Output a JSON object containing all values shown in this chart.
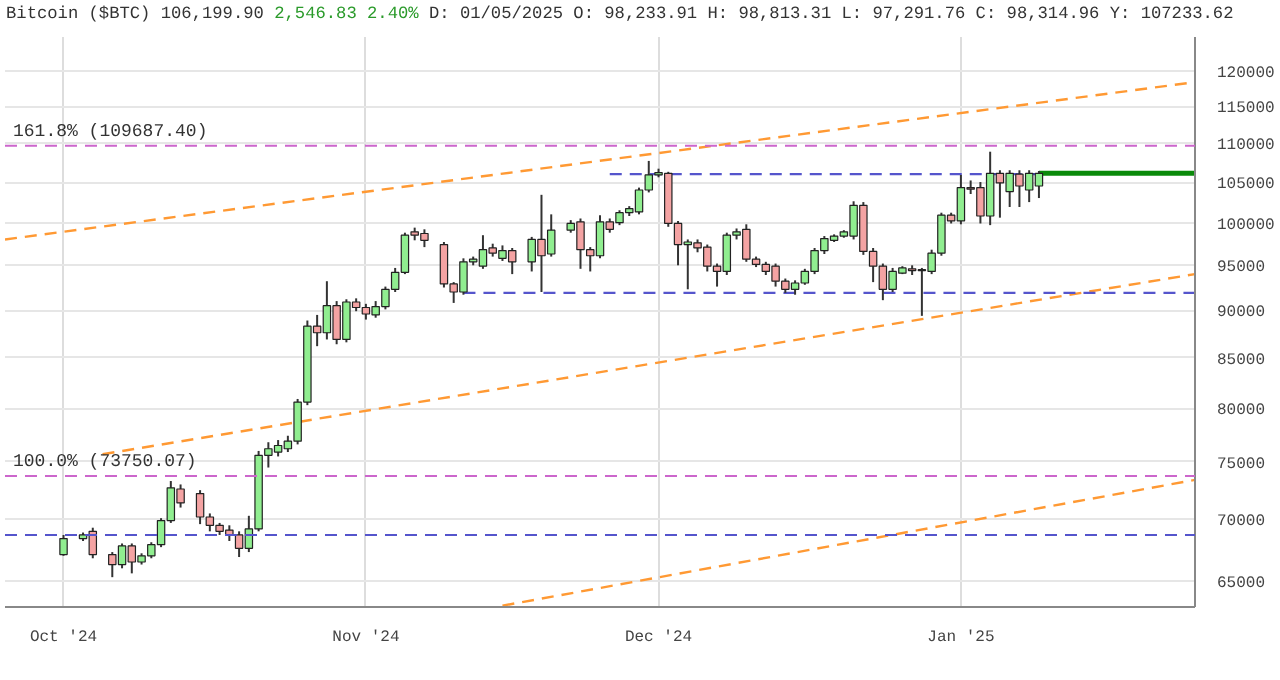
{
  "chart_data": {
    "type": "candlestick",
    "title": "Bitcoin ($BTC) 106,199.90",
    "subtitle": "2,546.83 2.40%",
    "annotations": [
      "D: 01/05/2025 O: 98,233.91 H: 98,813.31 L: 97,291.76 C: 98,314.96 Y: 107233.62"
    ],
    "x": [
      "2024-10-01",
      "2024-10-03",
      "2024-10-04",
      "2024-10-06",
      "2024-10-07",
      "2024-10-08",
      "2024-10-09",
      "2024-10-10",
      "2024-10-11",
      "2024-10-12",
      "2024-10-13",
      "2024-10-15",
      "2024-10-16",
      "2024-10-17",
      "2024-10-18",
      "2024-10-19",
      "2024-10-20",
      "2024-10-21",
      "2024-10-22",
      "2024-10-23",
      "2024-10-24",
      "2024-10-25",
      "2024-10-26",
      "2024-10-27",
      "2024-10-28",
      "2024-10-29",
      "2024-10-30",
      "2024-10-31",
      "2024-11-01",
      "2024-11-02",
      "2024-11-03",
      "2024-11-04",
      "2024-11-05",
      "2024-11-06",
      "2024-11-07",
      "2024-11-09",
      "2024-11-10",
      "2024-11-11",
      "2024-11-12",
      "2024-11-13",
      "2024-11-14",
      "2024-11-15",
      "2024-11-16",
      "2024-11-18",
      "2024-11-19",
      "2024-11-20",
      "2024-11-22",
      "2024-11-23",
      "2024-11-24",
      "2024-11-25",
      "2024-11-26",
      "2024-11-27",
      "2024-11-28",
      "2024-11-29",
      "2024-11-30",
      "2024-12-01",
      "2024-12-02",
      "2024-12-03",
      "2024-12-04",
      "2024-12-05",
      "2024-12-06",
      "2024-12-07",
      "2024-12-08",
      "2024-12-09",
      "2024-12-10",
      "2024-12-11",
      "2024-12-12",
      "2024-12-13",
      "2024-12-14",
      "2024-12-15",
      "2024-12-16",
      "2024-12-17",
      "2024-12-18",
      "2024-12-19",
      "2024-12-20",
      "2024-12-21",
      "2024-12-22",
      "2024-12-23",
      "2024-12-24",
      "2024-12-25",
      "2024-12-26",
      "2024-12-27",
      "2024-12-28",
      "2024-12-29",
      "2024-12-30",
      "2024-12-31",
      "2025-01-01",
      "2025-01-02",
      "2025-01-03",
      "2025-01-04",
      "2025-01-05",
      "2025-01-06",
      "2025-01-07",
      "2025-01-08",
      "2025-01-09"
    ],
    "ohlc": [
      [
        67100,
        68700,
        67000,
        68400
      ],
      [
        68400,
        68900,
        68200,
        68700
      ],
      [
        69000,
        69300,
        66800,
        67100
      ],
      [
        67100,
        67300,
        65300,
        66300
      ],
      [
        66300,
        68000,
        66000,
        67800
      ],
      [
        67800,
        68000,
        65600,
        66500
      ],
      [
        66500,
        67200,
        66300,
        67000
      ],
      [
        67000,
        68100,
        66800,
        67900
      ],
      [
        67900,
        70100,
        67700,
        69900
      ],
      [
        69900,
        73300,
        69700,
        72700
      ],
      [
        72600,
        73000,
        71000,
        71400
      ],
      [
        72200,
        72500,
        69600,
        70200
      ],
      [
        70200,
        70500,
        69000,
        69500
      ],
      [
        69500,
        69700,
        68700,
        69000
      ],
      [
        69100,
        69500,
        68200,
        68700
      ],
      [
        68700,
        69000,
        66900,
        67600
      ],
      [
        67600,
        70300,
        67300,
        69200
      ],
      [
        69200,
        76000,
        69000,
        75600
      ],
      [
        75600,
        76800,
        74500,
        76200
      ],
      [
        75900,
        77000,
        75500,
        76500
      ],
      [
        76200,
        77400,
        75900,
        76900
      ],
      [
        76900,
        80900,
        76600,
        80600
      ],
      [
        80600,
        88900,
        80300,
        88300
      ],
      [
        88300,
        89500,
        86200,
        87600
      ],
      [
        87600,
        93200,
        86900,
        90500
      ],
      [
        90500,
        91000,
        86400,
        86900
      ],
      [
        86900,
        91200,
        86600,
        90900
      ],
      [
        90900,
        91300,
        89900,
        90300
      ],
      [
        90300,
        90700,
        89000,
        89600
      ],
      [
        89500,
        91000,
        89200,
        90400
      ],
      [
        90400,
        92600,
        90100,
        92300
      ],
      [
        92300,
        94700,
        92000,
        94200
      ],
      [
        94200,
        98800,
        94000,
        98500
      ],
      [
        98900,
        99400,
        97900,
        98500
      ],
      [
        98700,
        99200,
        97100,
        97900
      ],
      [
        97400,
        97700,
        92500,
        92900
      ],
      [
        92900,
        93100,
        90800,
        92000
      ],
      [
        92000,
        95800,
        91700,
        95400
      ],
      [
        95400,
        96000,
        95000,
        95700
      ],
      [
        94900,
        98500,
        94600,
        96800
      ],
      [
        97000,
        97500,
        96000,
        96400
      ],
      [
        95800,
        97300,
        95500,
        96700
      ],
      [
        96700,
        97000,
        94000,
        95400
      ],
      [
        95400,
        98300,
        94300,
        98000
      ],
      [
        98000,
        103400,
        92000,
        96100
      ],
      [
        96300,
        101000,
        96000,
        99100
      ],
      [
        99100,
        100300,
        98800,
        99900
      ],
      [
        100100,
        100500,
        94600,
        96800
      ],
      [
        96800,
        97100,
        94300,
        96100
      ],
      [
        96100,
        100900,
        95800,
        100100
      ],
      [
        100100,
        100500,
        98800,
        99200
      ],
      [
        100000,
        101500,
        99700,
        101200
      ],
      [
        101200,
        102000,
        100800,
        101700
      ],
      [
        101300,
        104300,
        101000,
        104000
      ],
      [
        104000,
        107700,
        103700,
        105900
      ],
      [
        105900,
        106700,
        105600,
        106200
      ],
      [
        106100,
        106300,
        99500,
        99900
      ],
      [
        99900,
        100200,
        95000,
        97400
      ],
      [
        97400,
        98000,
        92300,
        97700
      ],
      [
        97600,
        98000,
        96500,
        97000
      ],
      [
        97100,
        97400,
        94300,
        94900
      ],
      [
        94900,
        95200,
        92600,
        94300
      ],
      [
        94300,
        98800,
        93900,
        98500
      ],
      [
        98500,
        99300,
        98000,
        98900
      ],
      [
        99200,
        99800,
        95400,
        95700
      ],
      [
        95700,
        96000,
        94800,
        95100
      ],
      [
        95100,
        95400,
        93900,
        94300
      ],
      [
        94900,
        95200,
        92600,
        93200
      ],
      [
        93200,
        93500,
        91900,
        92300
      ],
      [
        92300,
        93300,
        91700,
        93000
      ],
      [
        93000,
        94600,
        92800,
        94300
      ],
      [
        94300,
        97000,
        94000,
        96700
      ],
      [
        96700,
        98400,
        96300,
        98100
      ],
      [
        97900,
        98600,
        97700,
        98400
      ],
      [
        98400,
        99100,
        98200,
        98900
      ],
      [
        98400,
        102600,
        98000,
        102100
      ],
      [
        102100,
        102500,
        96200,
        96600
      ],
      [
        96600,
        97000,
        93100,
        94900
      ],
      [
        94900,
        95200,
        91100,
        92300
      ],
      [
        92300,
        94700,
        92000,
        94300
      ],
      [
        94100,
        94900,
        94000,
        94700
      ],
      [
        94600,
        95000,
        93900,
        94400
      ],
      [
        94400,
        94700,
        89400,
        94500
      ],
      [
        94300,
        96800,
        94000,
        96400
      ],
      [
        96400,
        101200,
        96100,
        100900
      ],
      [
        100900,
        101200,
        99900,
        100200
      ],
      [
        100200,
        105900,
        99800,
        104300
      ],
      [
        104300,
        105200,
        103500,
        104100
      ],
      [
        104300,
        105000,
        99900,
        100800
      ],
      [
        100800,
        108900,
        99700,
        106100
      ],
      [
        106100,
        106500,
        100600,
        104900
      ],
      [
        103800,
        106500,
        101900,
        106100
      ],
      [
        106000,
        106500,
        101900,
        104500
      ],
      [
        104000,
        106500,
        102500,
        106100
      ],
      [
        104500,
        106400,
        103000,
        106100
      ]
    ],
    "series": [
      {
        "type": "line",
        "x": [
          "2024-09-25",
          "2025-01-25"
        ],
        "values": [
          98000,
          118400
        ],
        "color": "#ff9933",
        "line_style": "dashed"
      },
      {
        "type": "line",
        "x": [
          "2024-10-05",
          "2025-01-25"
        ],
        "values": [
          75700,
          94000
        ],
        "color": "#ff9933",
        "line_style": "dashed"
      },
      {
        "type": "line",
        "x": [
          "2024-11-15",
          "2025-01-25"
        ],
        "values": [
          63100,
          73400
        ],
        "color": "#ff9933",
        "line_style": "dashed"
      },
      {
        "type": "line",
        "x": [
          "2024-11-26",
          "2025-01-09"
        ],
        "values": [
          106000,
          106000
        ],
        "color": "#5555cc",
        "line_style": "dashed"
      },
      {
        "type": "line",
        "x": [
          "2024-11-11",
          "2025-01-25"
        ],
        "values": [
          91900,
          91900
        ],
        "color": "#5555cc",
        "line_style": "dashed"
      },
      {
        "type": "line",
        "x": [
          "2025-01-09",
          "2025-01-25"
        ],
        "values": [
          106100,
          106100
        ],
        "color": "#0a8a0a",
        "line_style": "solid"
      }
    ],
    "ref_lines": [
      {
        "axis": "y",
        "value": 109687.4,
        "label": "161.8% (109687.40)",
        "color": "#cc66cc",
        "line_style": "dashed"
      },
      {
        "axis": "y",
        "value": 73750.07,
        "label": "100.0% (73750.07)",
        "color": "#cc66cc",
        "line_style": "dashed"
      },
      {
        "axis": "y",
        "value": 68700,
        "color": "#5555cc",
        "line_style": "dashed"
      }
    ],
    "log": true,
    "grid": true,
    "xlim": [
      "2024-09-25",
      "2025-01-25"
    ],
    "xticks": [
      {
        "value": "2024-10-01",
        "label": "Oct '24"
      },
      {
        "value": "2024-11-01",
        "label": "Nov '24"
      },
      {
        "value": "2024-12-01",
        "label": "Dec '24"
      },
      {
        "value": "2025-01-01",
        "label": "Jan '25"
      }
    ],
    "ylim": [
      63000,
      125000
    ],
    "yticks": [
      65000,
      70000,
      75000,
      80000,
      85000,
      90000,
      95000,
      100000,
      105000,
      110000,
      115000,
      120000
    ]
  }
}
